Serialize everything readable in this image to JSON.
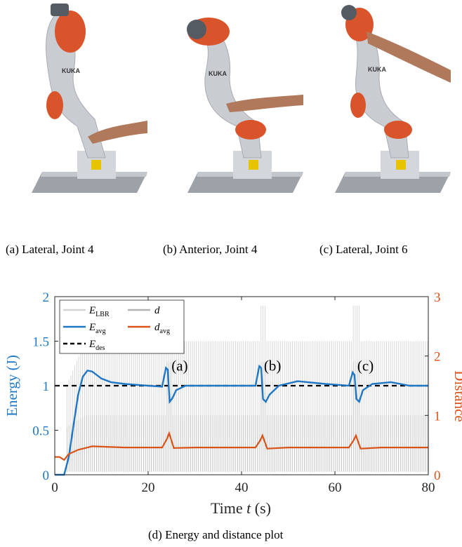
{
  "photos": [
    {
      "caption": "(a) Lateral, Joint 4",
      "brand": "KUKA"
    },
    {
      "caption": "(b) Anterior, Joint 4",
      "brand": "KUKA"
    },
    {
      "caption": "(c) Lateral, Joint 6",
      "brand": "KUKA"
    }
  ],
  "figure_caption": "(d) Energy and distance plot",
  "colors": {
    "energy": "#1f77c4",
    "distance": "#d95319",
    "raw": "#cccccc",
    "des": "#000000",
    "robot_orange": "#d9542b",
    "robot_grey": "#c9ccd1"
  },
  "chart_data": {
    "type": "line",
    "xlabel": "Time t (s)",
    "ylabel_left": "Energy (J)",
    "ylabel_right": "Distance",
    "xlim": [
      0,
      80
    ],
    "ylim_left": [
      0,
      2
    ],
    "ylim_right": [
      0,
      3
    ],
    "xticks": [
      0,
      20,
      40,
      60,
      80
    ],
    "yticks_left": [
      0,
      0.5,
      1,
      1.5,
      2
    ],
    "yticks_right": [
      0,
      1,
      2,
      3
    ],
    "legend": {
      "placement": "top-left",
      "entries": [
        "E_LBR",
        "d",
        "E_avg",
        "d_avg",
        "E_des"
      ]
    },
    "annotations": [
      {
        "text": "(a)",
        "x": 25,
        "y": 1.17
      },
      {
        "text": "(b)",
        "x": 44.8,
        "y": 1.17
      },
      {
        "text": "(c)",
        "x": 64.8,
        "y": 1.17
      }
    ],
    "series": [
      {
        "name": "E_avg",
        "axis": "left",
        "x": [
          0,
          2,
          3,
          4,
          5,
          6,
          7,
          8,
          10,
          12,
          15,
          20,
          23,
          23.8,
          24.2,
          24.6,
          25.2,
          26,
          28,
          32,
          38,
          43,
          43.8,
          44.2,
          44.6,
          45.2,
          46,
          48,
          52,
          58,
          63,
          63.8,
          64.2,
          64.6,
          65.2,
          66,
          68,
          72,
          76,
          80
        ],
        "y": [
          0,
          0,
          0.2,
          0.55,
          0.9,
          1.1,
          1.17,
          1.16,
          1.08,
          1.04,
          1.02,
          1.0,
          0.99,
          1.2,
          1.18,
          0.82,
          0.86,
          0.95,
          1.0,
          1.0,
          1.0,
          1.0,
          1.22,
          1.2,
          0.85,
          0.82,
          0.9,
          1.0,
          1.05,
          1.02,
          1.0,
          1.15,
          1.12,
          0.85,
          0.82,
          0.95,
          1.02,
          1.04,
          1.0,
          1.0
        ]
      },
      {
        "name": "d_avg",
        "axis": "right",
        "x": [
          0,
          1,
          2,
          3,
          5,
          8,
          15,
          23,
          24,
          24.5,
          25.5,
          30,
          43,
          44,
          44.5,
          45.5,
          50,
          63,
          64,
          64.5,
          65.5,
          70,
          80
        ],
        "y": [
          0.3,
          0.3,
          0.25,
          0.35,
          0.42,
          0.48,
          0.46,
          0.46,
          0.6,
          0.7,
          0.45,
          0.46,
          0.46,
          0.58,
          0.66,
          0.44,
          0.46,
          0.46,
          0.58,
          0.66,
          0.44,
          0.46,
          0.46
        ]
      },
      {
        "name": "E_des",
        "axis": "left",
        "x": [
          0,
          80
        ],
        "y": [
          1,
          1
        ]
      }
    ]
  }
}
